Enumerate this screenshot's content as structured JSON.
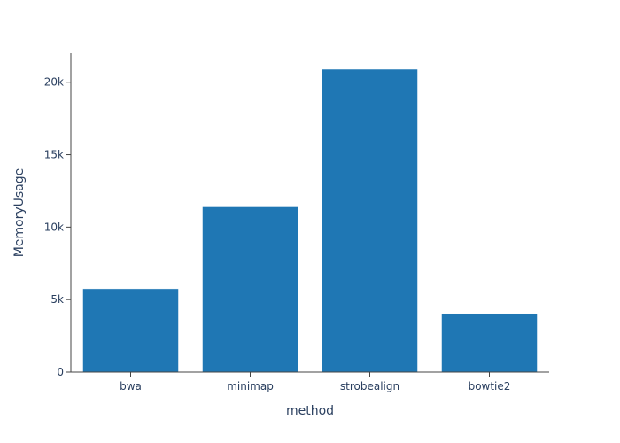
{
  "chart_data": {
    "type": "bar",
    "categories": [
      "bwa",
      "minimap",
      "strobealign",
      "bowtie2"
    ],
    "values": [
      5750,
      11400,
      20900,
      4050
    ],
    "xlabel": "method",
    "ylabel": "MemoryUsage",
    "ylim": [
      0,
      22000
    ],
    "yticks": [
      0,
      5000,
      10000,
      15000,
      20000
    ],
    "ytick_labels": [
      "0",
      "5k",
      "10k",
      "15k",
      "20k"
    ],
    "bar_color": "#1f77b4",
    "grid": false
  }
}
